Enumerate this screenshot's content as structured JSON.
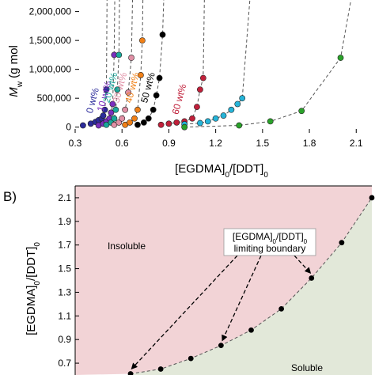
{
  "chart_data": [
    {
      "type": "scatter",
      "panel_label": "",
      "xlabel_main": "[EGDMA]",
      "xlabel_sub1": "0",
      "xlabel_mid": "/[DDT]",
      "xlabel_sub2": "0",
      "ylabel_main": "M",
      "ylabel_sub": "w",
      "ylabel_unit": " (g mol",
      "xlim": [
        0.3,
        2.2
      ],
      "ylim": [
        -100000,
        2200000
      ],
      "xticks": [
        "0.3",
        "0.6",
        "0.9",
        "1.2",
        "1.5",
        "1.8",
        "2.1"
      ],
      "xtick_values": [
        0.3,
        0.6,
        0.9,
        1.2,
        1.5,
        1.8,
        2.1
      ],
      "yticks": [
        "0",
        "500,000",
        "1,000,000",
        "1,500,000",
        "2,000,000"
      ],
      "ytick_values": [
        0,
        500000,
        1000000,
        1500000,
        2000000
      ],
      "series": [
        {
          "name": "0 wt%",
          "color": "#2b2b9a",
          "x": [
            0.35,
            0.4,
            0.43,
            0.45,
            0.47,
            0.48,
            0.49,
            0.5
          ],
          "y": [
            30000,
            60000,
            90000,
            120000,
            150000,
            200000,
            300000,
            650000
          ]
        },
        {
          "name": "10 wt%",
          "color": "#7b2fbe",
          "x": [
            0.45,
            0.48,
            0.5,
            0.52,
            0.53,
            0.54,
            0.55
          ],
          "y": [
            30000,
            60000,
            100000,
            150000,
            250000,
            400000,
            1250000
          ]
        },
        {
          "name": "20 wt%",
          "color": "#19a89a",
          "x": [
            0.5,
            0.53,
            0.55,
            0.56,
            0.57,
            0.58
          ],
          "y": [
            40000,
            80000,
            150000,
            300000,
            650000,
            1250000
          ]
        },
        {
          "name": "30 wt%",
          "color": "#e08fa5",
          "x": [
            0.55,
            0.58,
            0.6,
            0.62,
            0.64,
            0.66
          ],
          "y": [
            40000,
            80000,
            150000,
            300000,
            600000,
            1200000
          ]
        },
        {
          "name": "40 wt%",
          "color": "#f08018",
          "x": [
            0.62,
            0.65,
            0.68,
            0.7,
            0.72,
            0.73
          ],
          "y": [
            40000,
            80000,
            150000,
            300000,
            900000,
            1500000
          ]
        },
        {
          "name": "50 wt%",
          "color": "#000000",
          "x": [
            0.7,
            0.74,
            0.77,
            0.8,
            0.82,
            0.84,
            0.86
          ],
          "y": [
            40000,
            80000,
            150000,
            300000,
            550000,
            850000,
            1600000
          ]
        },
        {
          "name": "60 wt%",
          "color": "#c0203a",
          "x": [
            0.85,
            0.9,
            0.95,
            1.0,
            1.05,
            1.08,
            1.1,
            1.12
          ],
          "y": [
            40000,
            60000,
            80000,
            100000,
            150000,
            350000,
            650000,
            850000
          ]
        },
        {
          "name": "",
          "color": "#26b4d8",
          "x": [
            1.0,
            1.1,
            1.15,
            1.2,
            1.25,
            1.3,
            1.34,
            1.37
          ],
          "y": [
            50000,
            70000,
            100000,
            150000,
            200000,
            300000,
            400000,
            500000
          ]
        },
        {
          "name": "",
          "color": "#2aa22a",
          "x": [
            1.0,
            1.35,
            1.55,
            1.75,
            2.0
          ],
          "y": [
            0,
            30000,
            100000,
            280000,
            1200000
          ]
        }
      ],
      "legend": "inline labels near curves"
    },
    {
      "type": "line",
      "panel_label": "B)",
      "xlim": [
        0.3,
        2.2
      ],
      "ylim": [
        0.6,
        2.2
      ],
      "ylabel_main": "[EGDMA]",
      "ylabel_sub1": "0",
      "ylabel_mid": "/[DDT]",
      "ylabel_sub2": "0",
      "yticks": [
        "0.7",
        "0.9",
        "1.1",
        "1.3",
        "1.5",
        "1.7",
        "1.9",
        "2.1"
      ],
      "ytick_values": [
        0.7,
        0.9,
        1.1,
        1.3,
        1.5,
        1.7,
        1.9,
        2.1
      ],
      "boundary_x": [
        0.43,
        0.53,
        0.63,
        0.73,
        0.83,
        0.93,
        1.04,
        1.1,
        1.14
      ],
      "boundary_y": [
        0.61,
        0.65,
        0.74,
        0.85,
        0.98,
        1.16,
        1.42,
        1.72,
        2.1
      ],
      "region_insoluble": "Insoluble",
      "region_soluble": "Soluble",
      "insoluble_color": "#f2d3d6",
      "soluble_color": "#e2e8d9",
      "annotation_line1_main": "[EGDMA]",
      "annotation_line1_sub1": "0",
      "annotation_line1_mid": "/[DDT]",
      "annotation_line1_sub2": "0",
      "annotation_line2": "limiting boundary"
    }
  ]
}
